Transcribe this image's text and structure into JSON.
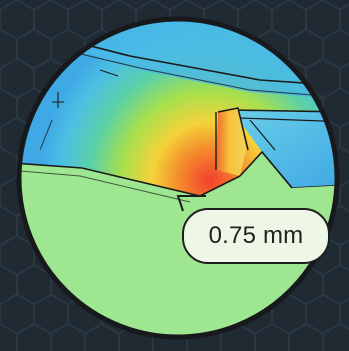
{
  "measurement": {
    "value_text": "0.75 mm"
  },
  "colors": {
    "background": "#1f2a33",
    "hex_line": "#2c3944",
    "lens_rim": "#1a1d21",
    "base_green": "#9ee68f",
    "deviation_hot": "#f2553a",
    "deviation_warm": "#f7c43c",
    "deviation_cool": "#4fc0e8"
  },
  "icons": {
    "measure_callout": "tooltip-callout-icon"
  }
}
